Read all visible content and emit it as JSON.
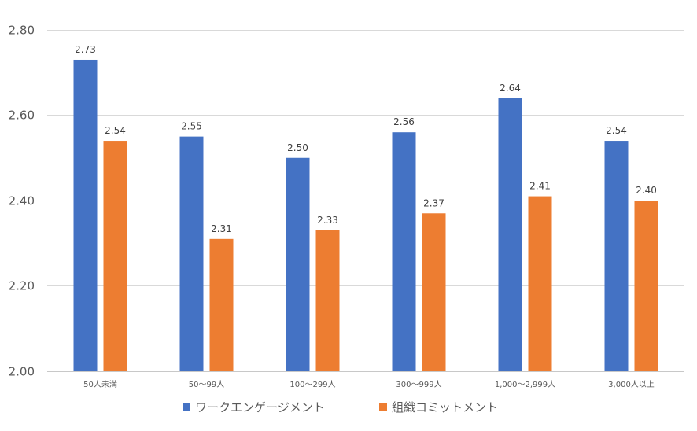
{
  "chart_data": {
    "type": "bar",
    "title": "",
    "xlabel": "",
    "ylabel": "",
    "ylim": [
      2.0,
      2.8
    ],
    "yticks": [
      "2.00",
      "2.20",
      "2.40",
      "2.60",
      "2.80"
    ],
    "ytick_values": [
      2.0,
      2.2,
      2.4,
      2.6,
      2.8
    ],
    "grid": true,
    "legend_position": "bottom",
    "categories": [
      "50人未満",
      "50〜99人",
      "100〜299人",
      "300〜999人",
      "1,000〜2,999人",
      "3,000人以上"
    ],
    "series": [
      {
        "name": "ワークエンゲージメント",
        "color": "#4472c4",
        "values": [
          2.73,
          2.55,
          2.5,
          2.56,
          2.64,
          2.54
        ],
        "labels": [
          "2.73",
          "2.55",
          "2.50",
          "2.56",
          "2.64",
          "2.54"
        ]
      },
      {
        "name": "組織コミットメント",
        "color": "#ed7d31",
        "values": [
          2.54,
          2.31,
          2.33,
          2.37,
          2.41,
          2.4
        ],
        "labels": [
          "2.54",
          "2.31",
          "2.33",
          "2.37",
          "2.41",
          "2.40"
        ]
      }
    ]
  }
}
